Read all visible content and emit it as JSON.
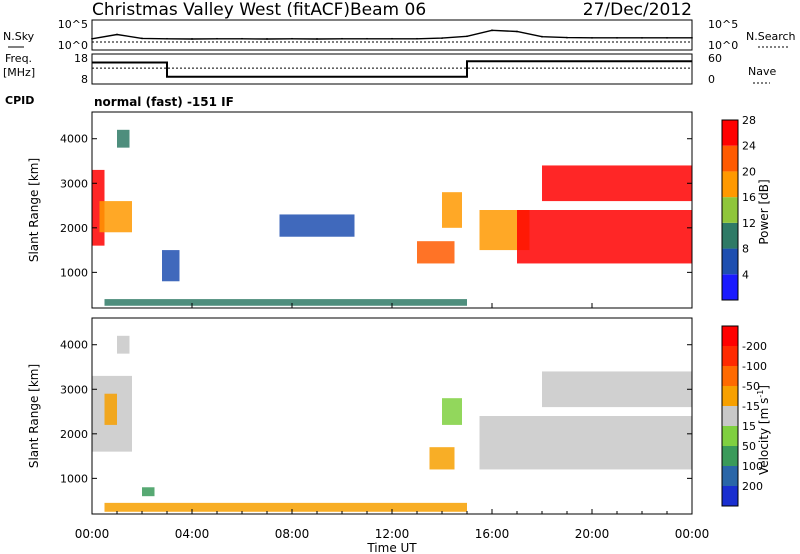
{
  "header": {
    "station": "Christmas Valley West (fitACF)",
    "beam": "Beam 06",
    "date": "27/Dec/2012"
  },
  "panel_labels": {
    "nsky": "N.Sky",
    "nsearch": "N.Search",
    "freq_line1": "Freq.",
    "freq_line2": "[MHz]",
    "nave": "Nave",
    "cpid": "CPID",
    "cpid_value": "normal (fast) -151 IF",
    "nsky_top": "10^5",
    "nsky_bottom": "10^0",
    "nsearch_top": "10^5",
    "nsearch_bottom": "10^0",
    "freq_top": "18",
    "freq_bottom": "8",
    "nave_top": "60",
    "nave_bottom": "0"
  },
  "chart_data": [
    {
      "type": "line",
      "title": "",
      "ylabel": "N.Sky",
      "y2label": "N.Search",
      "scale": "log",
      "ylim": [
        1,
        100000
      ],
      "x": [
        "00:00",
        "01:00",
        "02:00",
        "03:00",
        "04:00",
        "05:00",
        "06:00",
        "07:00",
        "08:00",
        "09:00",
        "10:00",
        "11:00",
        "12:00",
        "13:00",
        "14:00",
        "15:00",
        "16:00",
        "17:00",
        "18:00",
        "19:00",
        "20:00",
        "21:00",
        "22:00",
        "23:00",
        "00:00"
      ],
      "series": [
        {
          "name": "N.Sky",
          "values": [
            60,
            400,
            70,
            60,
            55,
            60,
            60,
            55,
            60,
            55,
            60,
            60,
            60,
            60,
            80,
            180,
            2500,
            1500,
            150,
            100,
            90,
            90,
            90,
            90,
            90
          ]
        },
        {
          "name": "N.Search",
          "values": [
            20,
            20,
            20,
            20,
            20,
            20,
            20,
            20,
            20,
            20,
            20,
            20,
            20,
            20,
            20,
            20,
            20,
            20,
            20,
            20,
            20,
            20,
            20,
            20,
            20
          ]
        }
      ]
    },
    {
      "type": "line",
      "ylabel": "Freq. [MHz]",
      "y2label": "Nave",
      "ylim": [
        8,
        18
      ],
      "y2lim": [
        0,
        60
      ],
      "x_hours": [
        0,
        3,
        3,
        15,
        15,
        24
      ],
      "series": [
        {
          "name": "Freq.",
          "values": [
            15.5,
            15.5,
            10.0,
            10.0,
            16.0,
            16.0
          ]
        },
        {
          "name": "Nave",
          "values": [
            32,
            32,
            32,
            32,
            32,
            32
          ]
        }
      ]
    },
    {
      "type": "heatmap",
      "variable": "Power",
      "units": "dB",
      "ylabel": "Slant Range [km]",
      "xlabel": "Time UT",
      "xticks": [
        "00:00",
        "04:00",
        "08:00",
        "12:00",
        "16:00",
        "20:00",
        "00:00"
      ],
      "yticks": [
        1000,
        2000,
        3000,
        4000
      ],
      "ylim": [
        200,
        4600
      ],
      "colorbar_label": "Power [dB]",
      "colorbar_ticks": [
        4,
        8,
        12,
        16,
        20,
        24,
        28
      ],
      "colorbar_colors": [
        "#1a1aff",
        "#1e4fb0",
        "#2f7a66",
        "#8fc63a",
        "#ff9900",
        "#ff5a00",
        "#ff0000"
      ],
      "regions": [
        {
          "t0": 0.0,
          "t1": 0.5,
          "r0": 1600,
          "r1": 3300,
          "level": 26
        },
        {
          "t0": 0.3,
          "t1": 1.6,
          "r0": 1900,
          "r1": 2600,
          "level": 18
        },
        {
          "t0": 1.0,
          "t1": 1.5,
          "r0": 3800,
          "r1": 4200,
          "level": 12
        },
        {
          "t0": 2.8,
          "t1": 3.5,
          "r0": 800,
          "r1": 1500,
          "level": 8
        },
        {
          "t0": 0.5,
          "t1": 15.0,
          "r0": 250,
          "r1": 400,
          "level": 10
        },
        {
          "t0": 7.5,
          "t1": 10.5,
          "r0": 1800,
          "r1": 2300,
          "level": 6
        },
        {
          "t0": 13.0,
          "t1": 14.5,
          "r0": 1200,
          "r1": 1700,
          "level": 22
        },
        {
          "t0": 14.0,
          "t1": 14.8,
          "r0": 2000,
          "r1": 2800,
          "level": 20
        },
        {
          "t0": 15.5,
          "t1": 17.5,
          "r0": 1500,
          "r1": 2400,
          "level": 18
        },
        {
          "t0": 17.0,
          "t1": 24.0,
          "r0": 1200,
          "r1": 2400,
          "level": 28
        },
        {
          "t0": 18.0,
          "t1": 24.0,
          "r0": 2600,
          "r1": 3400,
          "level": 28
        }
      ]
    },
    {
      "type": "heatmap",
      "variable": "Velocity",
      "units": "m s^-1",
      "ylabel": "Slant Range [km]",
      "xlabel": "Time UT",
      "xticks": [
        "00:00",
        "04:00",
        "08:00",
        "12:00",
        "16:00",
        "20:00",
        "00:00"
      ],
      "yticks": [
        1000,
        2000,
        3000,
        4000
      ],
      "ylim": [
        200,
        4600
      ],
      "colorbar_label": "Velocity [m s^-1]",
      "colorbar_ticks": [
        200,
        100,
        50,
        15,
        -15,
        -50,
        -100,
        -200
      ],
      "colorbar_colors": [
        "#1a2fd0",
        "#2a66a8",
        "#3a9a5a",
        "#7fd040",
        "#c8c8c8",
        "#f7a000",
        "#ff6a00",
        "#ff2a00",
        "#ff0000"
      ],
      "regions": [
        {
          "t0": 0.0,
          "t1": 1.6,
          "r0": 1600,
          "r1": 3300,
          "level": 0
        },
        {
          "t0": 0.5,
          "t1": 1.0,
          "r0": 2200,
          "r1": 2900,
          "level": -40
        },
        {
          "t0": 1.0,
          "t1": 1.5,
          "r0": 3800,
          "r1": 4200,
          "level": 0
        },
        {
          "t0": 2.0,
          "t1": 2.5,
          "r0": 600,
          "r1": 800,
          "level": 40
        },
        {
          "t0": 0.5,
          "t1": 15.0,
          "r0": 250,
          "r1": 450,
          "level": -30
        },
        {
          "t0": 13.5,
          "t1": 14.5,
          "r0": 1200,
          "r1": 1700,
          "level": -40
        },
        {
          "t0": 14.0,
          "t1": 14.8,
          "r0": 2200,
          "r1": 2800,
          "level": 30
        },
        {
          "t0": 15.5,
          "t1": 24.0,
          "r0": 1200,
          "r1": 2400,
          "level": 0
        },
        {
          "t0": 18.0,
          "t1": 24.0,
          "r0": 2600,
          "r1": 3400,
          "level": 0
        }
      ]
    }
  ],
  "axis": {
    "xlabel": "Time UT",
    "power_label": "Power [dB]",
    "velocity_label": "Velocity [m s"
  }
}
